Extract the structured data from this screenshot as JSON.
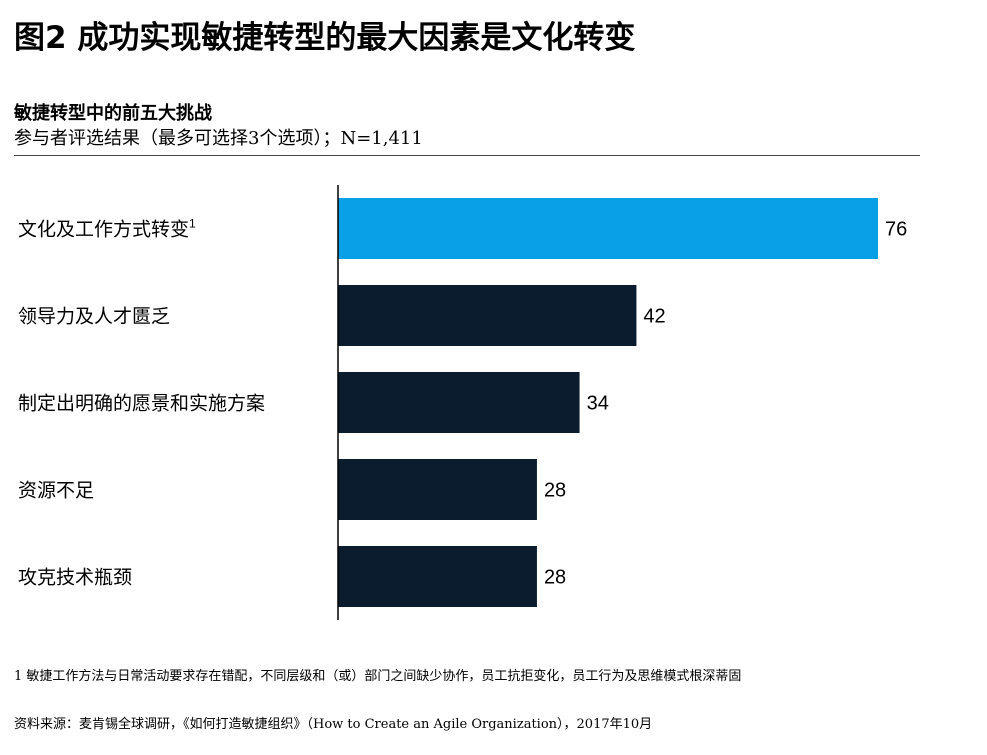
{
  "title": "图2  成功实现敏捷转型的最大因素是文化转变",
  "colors": {
    "highlight": "#0AA0E8",
    "bar": "#0B1C2E"
  },
  "chart_data": {
    "type": "bar",
    "orientation": "horizontal",
    "title": "敏捷转型中的前五大挑战",
    "subtitle": "参与者评选结果（最多可选择3个选项）；N=1,411",
    "categories": [
      "文化及工作方式转变",
      "领导力及人才匮乏",
      "制定出明确的愿景和实施方案",
      "资源不足",
      "攻克技术瓶颈"
    ],
    "category_superscripts": [
      "1",
      "",
      "",
      "",
      ""
    ],
    "values": [
      76,
      42,
      34,
      28,
      28
    ],
    "highlight_index": 0,
    "xlim": [
      0,
      80
    ],
    "grid": false,
    "legend": "none"
  },
  "footnote": "1 敏捷工作方法与日常活动要求存在错配，不同层级和（或）部门之间缺少协作，员工抗拒变化，员工行为及思维模式根深蒂固",
  "source": "资料来源：麦肯锡全球调研，《如何打造敏捷组织》（How to Create an Agile Organization），2017年10月"
}
